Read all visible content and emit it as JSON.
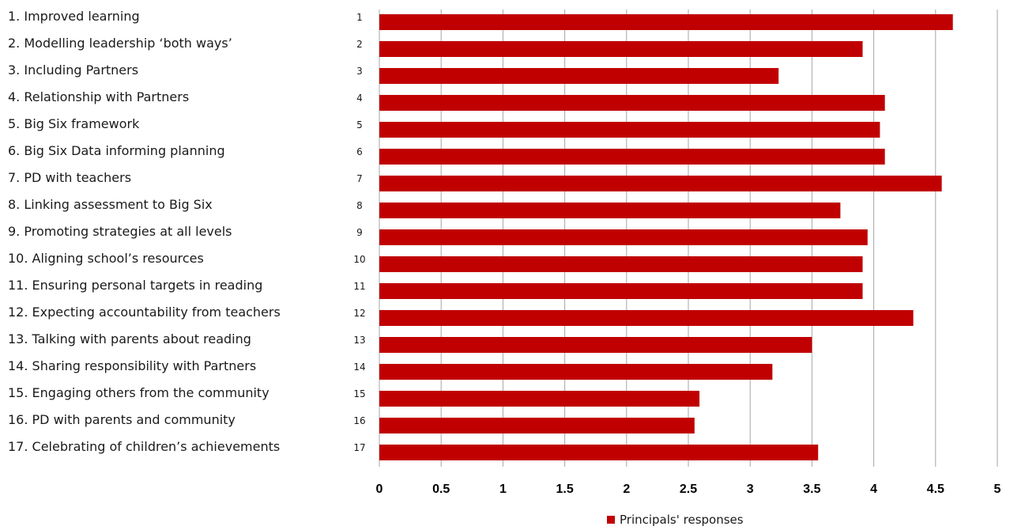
{
  "chart_data": {
    "type": "bar",
    "orientation": "horizontal",
    "items": [
      "1. Improved learning",
      "2. Modelling leadership ‘both ways’",
      "3. Including Partners",
      "4. Relationship with Partners",
      "5. Big Six framework",
      "6. Big Six Data informing planning",
      "7. PD with teachers",
      "8. Linking assessment to Big Six",
      "9. Promoting strategies at all levels",
      "10. Aligning school’s resources",
      "11. Ensuring personal targets in reading",
      "12. Expecting accountability from teachers",
      "13. Talking with parents about reading",
      "14. Sharing responsibility with Partners",
      "15. Engaging others from the community",
      "16. PD with parents and community",
      "17. Celebrating of children’s achievements"
    ],
    "categories": [
      "1",
      "2",
      "3",
      "4",
      "5",
      "6",
      "7",
      "8",
      "9",
      "10",
      "11",
      "12",
      "13",
      "14",
      "15",
      "16",
      "17"
    ],
    "series": [
      {
        "name": "Principals' responses",
        "values": [
          4.64,
          3.91,
          3.23,
          4.09,
          4.05,
          4.09,
          4.55,
          3.73,
          3.95,
          3.91,
          3.91,
          4.32,
          3.5,
          3.18,
          2.59,
          2.55,
          3.55
        ]
      }
    ],
    "xticks": [
      "0",
      "0.5",
      "1",
      "1.5",
      "2",
      "2.5",
      "3",
      "3.5",
      "4",
      "4.5",
      "5"
    ],
    "xlim": [
      0,
      5
    ],
    "grid": "vertical",
    "legend_position": "bottom",
    "bar_color": "#c00000"
  }
}
